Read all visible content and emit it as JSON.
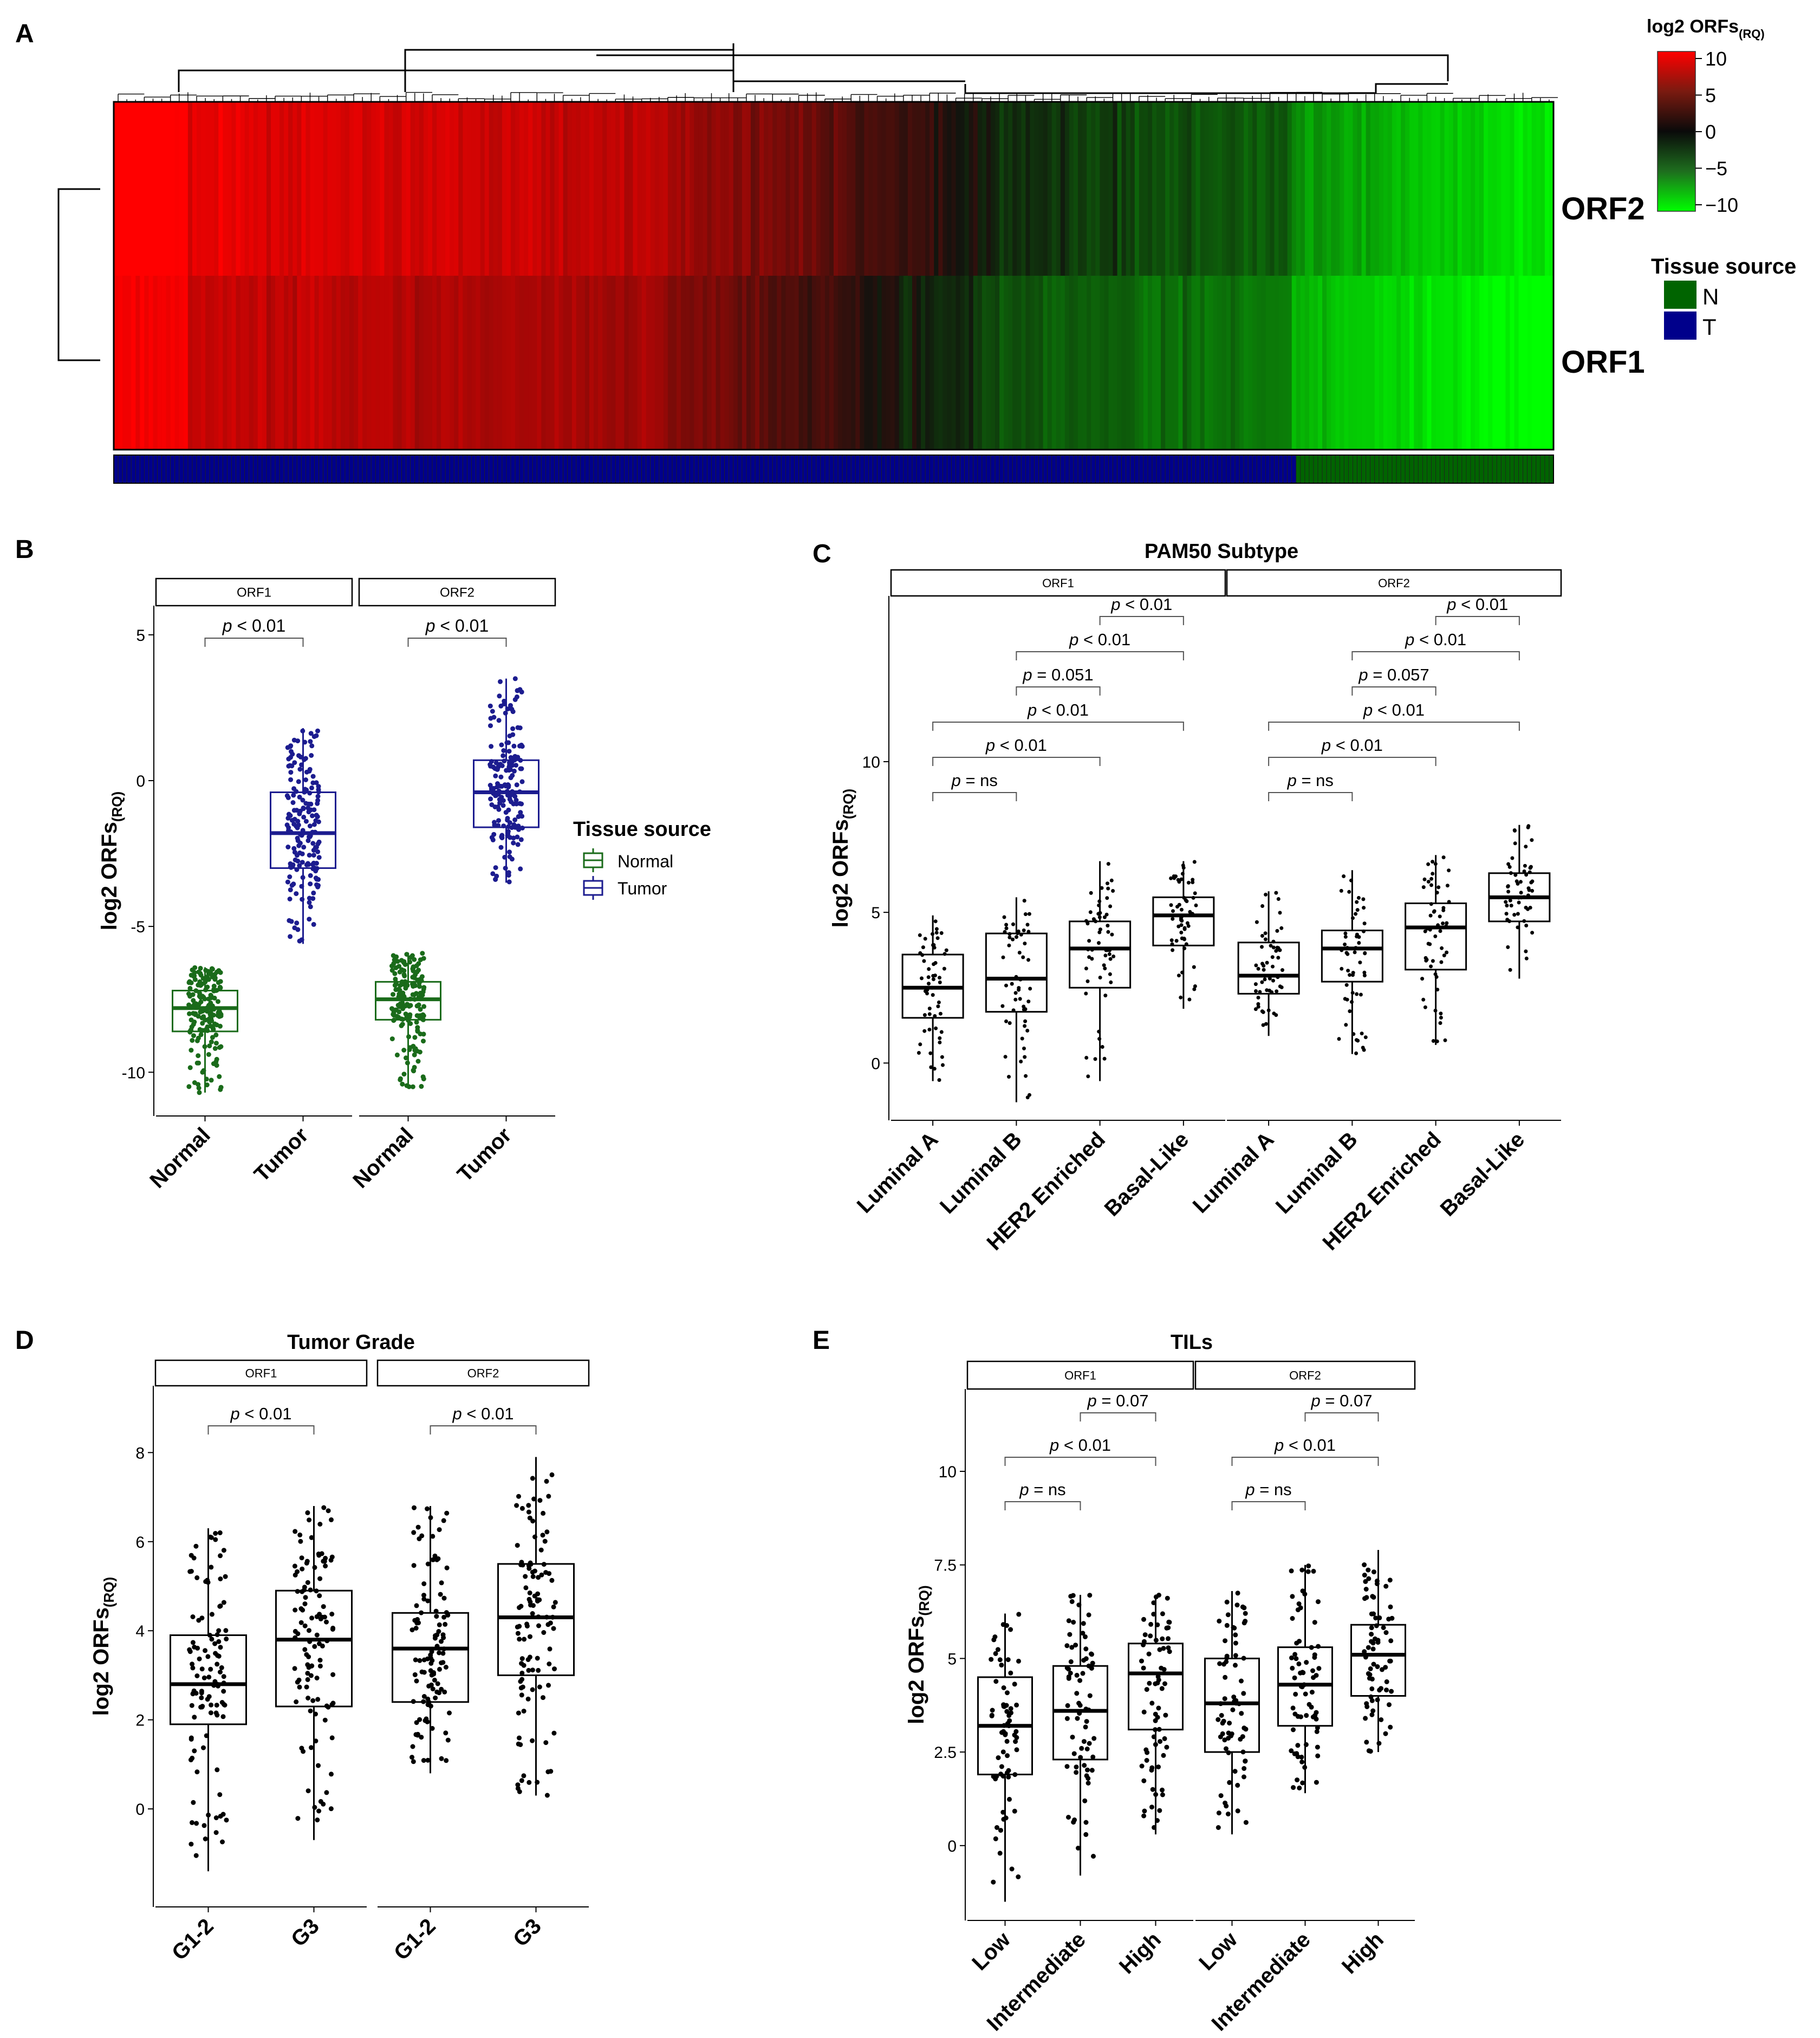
{
  "chart_data": [
    {
      "panel": "A",
      "type": "heatmap",
      "rows": [
        "ORF2",
        "ORF1"
      ],
      "colorbar": {
        "title": "log2 ORFs",
        "title_sub": "(RQ)",
        "ticks": [
          "10",
          "5",
          "0",
          "−5",
          "−10"
        ],
        "range": [
          -10,
          10
        ]
      },
      "annotation": {
        "title": "Tissue source",
        "items": [
          {
            "code": "N",
            "color": "#006400"
          },
          {
            "code": "T",
            "color": "#00008B"
          }
        ],
        "fraction_T": 0.82
      }
    },
    {
      "panel": "B",
      "type": "box",
      "ylabel": "log2 ORFs",
      "ylabel_sub": "(RQ)",
      "ylim": [
        -11.5,
        6
      ],
      "yticks": [
        "5",
        "0",
        "-5",
        "-10"
      ],
      "facets": [
        {
          "name": "ORF1",
          "p": "p < 0.01",
          "groups": [
            {
              "label": "Normal",
              "q1": -8.6,
              "median": -7.8,
              "q3": -7.2,
              "min": -10.7,
              "max": -6.4,
              "color": "#1A6B1A"
            },
            {
              "label": "Tumor",
              "q1": -3.0,
              "median": -1.8,
              "q3": -0.4,
              "min": -5.6,
              "max": 1.8,
              "color": "#1C1C8F"
            }
          ]
        },
        {
          "name": "ORF2",
          "p": "p < 0.01",
          "groups": [
            {
              "label": "Normal",
              "q1": -8.2,
              "median": -7.5,
              "q3": -6.9,
              "min": -10.5,
              "max": -5.9,
              "color": "#1A6B1A"
            },
            {
              "label": "Tumor",
              "q1": -1.6,
              "median": -0.4,
              "q3": 0.7,
              "min": -3.5,
              "max": 3.5,
              "color": "#1C1C8F"
            }
          ]
        }
      ],
      "legend": {
        "title": "Tissue source",
        "items": [
          {
            "label": "Normal",
            "color": "#1A6B1A"
          },
          {
            "label": "Tumor",
            "color": "#1C1C8F"
          }
        ]
      }
    },
    {
      "panel": "C",
      "type": "box",
      "title": "PAM50 Subtype",
      "ylabel": "log2 ORFs",
      "ylabel_sub": "(RQ)",
      "ylim": [
        -1.9,
        15.5
      ],
      "yticks": [
        "10",
        "5",
        "0"
      ],
      "facets": [
        {
          "name": "ORF1",
          "groups": [
            {
              "label": "Luminal A",
              "q1": 1.5,
              "median": 2.5,
              "q3": 3.6,
              "min": -0.6,
              "max": 4.9
            },
            {
              "label": "Luminal B",
              "q1": 1.7,
              "median": 2.8,
              "q3": 4.3,
              "min": -1.3,
              "max": 5.5
            },
            {
              "label": "HER2 Enriched",
              "q1": 2.5,
              "median": 3.8,
              "q3": 4.7,
              "min": -0.6,
              "max": 6.7
            },
            {
              "label": "Basal-Like",
              "q1": 3.9,
              "median": 4.9,
              "q3": 5.5,
              "min": 1.8,
              "max": 6.7
            }
          ],
          "comparisons": [
            {
              "a": 0,
              "b": 1,
              "p": "p = ns"
            },
            {
              "a": 0,
              "b": 2,
              "p": "p < 0.01"
            },
            {
              "a": 0,
              "b": 3,
              "p": "p < 0.01"
            },
            {
              "a": 1,
              "b": 2,
              "p": "p = 0.051"
            },
            {
              "a": 1,
              "b": 3,
              "p": "p < 0.01"
            },
            {
              "a": 2,
              "b": 3,
              "p": "p < 0.01"
            }
          ]
        },
        {
          "name": "ORF2",
          "groups": [
            {
              "label": "Luminal A",
              "q1": 2.3,
              "median": 2.9,
              "q3": 4.0,
              "min": 0.9,
              "max": 5.7
            },
            {
              "label": "Luminal B",
              "q1": 2.7,
              "median": 3.8,
              "q3": 4.4,
              "min": 0.3,
              "max": 6.4
            },
            {
              "label": "HER2 Enriched",
              "q1": 3.1,
              "median": 4.5,
              "q3": 5.3,
              "min": 0.6,
              "max": 6.9
            },
            {
              "label": "Basal-Like",
              "q1": 4.7,
              "median": 5.5,
              "q3": 6.3,
              "min": 2.8,
              "max": 7.9
            }
          ],
          "comparisons": [
            {
              "a": 0,
              "b": 1,
              "p": "p = ns"
            },
            {
              "a": 0,
              "b": 2,
              "p": "p < 0.01"
            },
            {
              "a": 0,
              "b": 3,
              "p": "p < 0.01"
            },
            {
              "a": 1,
              "b": 2,
              "p": "p = 0.057"
            },
            {
              "a": 1,
              "b": 3,
              "p": "p < 0.01"
            },
            {
              "a": 2,
              "b": 3,
              "p": "p < 0.01"
            }
          ]
        }
      ]
    },
    {
      "panel": "D",
      "type": "box",
      "title": "Tumor Grade",
      "ylabel": "log2 ORFs",
      "ylabel_sub": "(RQ)",
      "ylim": [
        -2.2,
        9.5
      ],
      "yticks": [
        "8",
        "6",
        "4",
        "2",
        "0"
      ],
      "facets": [
        {
          "name": "ORF1",
          "groups": [
            {
              "label": "G1-2",
              "q1": 1.9,
              "median": 2.8,
              "q3": 3.9,
              "min": -1.4,
              "max": 6.3
            },
            {
              "label": "G3",
              "q1": 2.3,
              "median": 3.8,
              "q3": 4.9,
              "min": -0.7,
              "max": 6.8
            }
          ],
          "comparisons": [
            {
              "a": 0,
              "b": 1,
              "p": "p < 0.01"
            }
          ]
        },
        {
          "name": "ORF2",
          "groups": [
            {
              "label": "G1-2",
              "q1": 2.4,
              "median": 3.6,
              "q3": 4.4,
              "min": 0.8,
              "max": 6.8
            },
            {
              "label": "G3",
              "q1": 3.0,
              "median": 4.3,
              "q3": 5.5,
              "min": 0.3,
              "max": 7.9
            }
          ],
          "comparisons": [
            {
              "a": 0,
              "b": 1,
              "p": "p < 0.01"
            }
          ]
        }
      ]
    },
    {
      "panel": "E",
      "type": "box",
      "title": "TILs",
      "ylabel": "log2 ORFs",
      "ylabel_sub": "(RQ)",
      "ylim": [
        -2.0,
        12.2
      ],
      "yticks": [
        "10",
        "7.5",
        "5",
        "2.5",
        "0"
      ],
      "facets": [
        {
          "name": "ORF1",
          "groups": [
            {
              "label": "Low",
              "q1": 1.9,
              "median": 3.2,
              "q3": 4.5,
              "min": -1.5,
              "max": 6.2
            },
            {
              "label": "Intermediate",
              "q1": 2.3,
              "median": 3.6,
              "q3": 4.8,
              "min": -0.8,
              "max": 6.7
            },
            {
              "label": "High",
              "q1": 3.1,
              "median": 4.6,
              "q3": 5.4,
              "min": 0.3,
              "max": 6.7
            }
          ],
          "comparisons": [
            {
              "a": 0,
              "b": 1,
              "p": "p = ns"
            },
            {
              "a": 0,
              "b": 2,
              "p": "p < 0.01"
            },
            {
              "a": 1,
              "b": 2,
              "p": "p = 0.07"
            }
          ]
        },
        {
          "name": "ORF2",
          "groups": [
            {
              "label": "Low",
              "q1": 2.5,
              "median": 3.8,
              "q3": 5.0,
              "min": 0.3,
              "max": 6.8
            },
            {
              "label": "Intermediate",
              "q1": 3.2,
              "median": 4.3,
              "q3": 5.3,
              "min": 1.4,
              "max": 7.5
            },
            {
              "label": "High",
              "q1": 4.0,
              "median": 5.1,
              "q3": 5.9,
              "min": 2.5,
              "max": 7.9
            }
          ],
          "comparisons": [
            {
              "a": 0,
              "b": 1,
              "p": "p = ns"
            },
            {
              "a": 0,
              "b": 2,
              "p": "p < 0.01"
            },
            {
              "a": 1,
              "b": 2,
              "p": "p = 0.07"
            }
          ]
        }
      ]
    }
  ]
}
